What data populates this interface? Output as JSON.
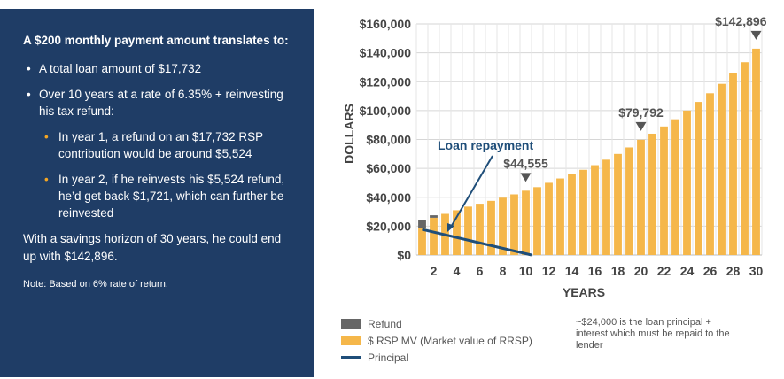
{
  "panel": {
    "heading": "A $200 monthly payment amount translates to:",
    "bullets": [
      {
        "text": "A total loan amount of $17,732"
      },
      {
        "text": "Over 10 years at a rate of 6.35% + reinvesting his tax refund:"
      }
    ],
    "sub_bullets": [
      {
        "text": "In year 1, a refund on an $17,732 RSP contribution would be around $5,524"
      },
      {
        "text": "In year 2, if he reinvests his $5,524 refund, he’d get back $1,721, which can further be reinvested"
      }
    ],
    "summary": "With a savings horizon of 30 years, he could end up with $142,896.",
    "note": "Note: Based on 6% rate of return."
  },
  "colors": {
    "panel_bg": "#1f3d66",
    "refund": "#666666",
    "rsp": "#f5b74a",
    "principal": "#1f4e79",
    "bullet_accent": "#f5a623"
  },
  "chart_data": {
    "type": "bar",
    "ylabel": "DOLLARS",
    "xlabel": "YEARS",
    "ylim": [
      0,
      160000
    ],
    "yticks": [
      "$0",
      "$20,000",
      "$40,000",
      "$60,000",
      "$80,000",
      "$100,000",
      "$120,000",
      "$140,000",
      "$160,000"
    ],
    "ytick_values": [
      0,
      20000,
      40000,
      60000,
      80000,
      100000,
      120000,
      140000,
      160000
    ],
    "xticks": [
      "2",
      "4",
      "6",
      "8",
      "10",
      "12",
      "14",
      "16",
      "18",
      "20",
      "22",
      "24",
      "26",
      "28",
      "30"
    ],
    "xtick_values": [
      2,
      4,
      6,
      8,
      10,
      12,
      14,
      16,
      18,
      20,
      22,
      24,
      26,
      28,
      30
    ],
    "grid": true,
    "years": [
      1,
      2,
      3,
      4,
      5,
      6,
      7,
      8,
      9,
      10,
      11,
      12,
      13,
      14,
      15,
      16,
      17,
      18,
      19,
      20,
      21,
      22,
      23,
      24,
      25,
      26,
      27,
      28,
      29,
      30
    ],
    "series": [
      {
        "name": "$ RSP MV (Market value of RRSP)",
        "values": [
          18800,
          25800,
          28500,
          31000,
          33500,
          35500,
          37500,
          39700,
          42000,
          44555,
          47000,
          50000,
          53000,
          56000,
          59000,
          62200,
          66000,
          70000,
          74500,
          79792,
          84000,
          89000,
          94000,
          100000,
          106000,
          112000,
          118500,
          126000,
          133500,
          142896
        ]
      },
      {
        "name": "Refund",
        "values": [
          5524,
          1721,
          0,
          0,
          0,
          0,
          0,
          0,
          0,
          0,
          0,
          0,
          0,
          0,
          0,
          0,
          0,
          0,
          0,
          0,
          0,
          0,
          0,
          0,
          0,
          0,
          0,
          0,
          0,
          0
        ]
      },
      {
        "name": "Principal",
        "type": "line",
        "x": [
          0.5,
          10
        ],
        "values": [
          17732,
          0
        ]
      }
    ],
    "callouts": [
      {
        "year": 10,
        "value": 44555,
        "label": "$44,555"
      },
      {
        "year": 20,
        "value": 79792,
        "label": "$79,792"
      },
      {
        "year": 30,
        "value": 142896,
        "label": "$142,896"
      }
    ],
    "annotation": {
      "label": "Loan repayment"
    }
  },
  "legend": {
    "items": [
      {
        "label": "Refund"
      },
      {
        "label": "$ RSP MV (Market value of RRSP)"
      },
      {
        "label": "Principal"
      }
    ],
    "note": "~$24,000 is the loan principal + interest which must be repaid to the lender"
  }
}
